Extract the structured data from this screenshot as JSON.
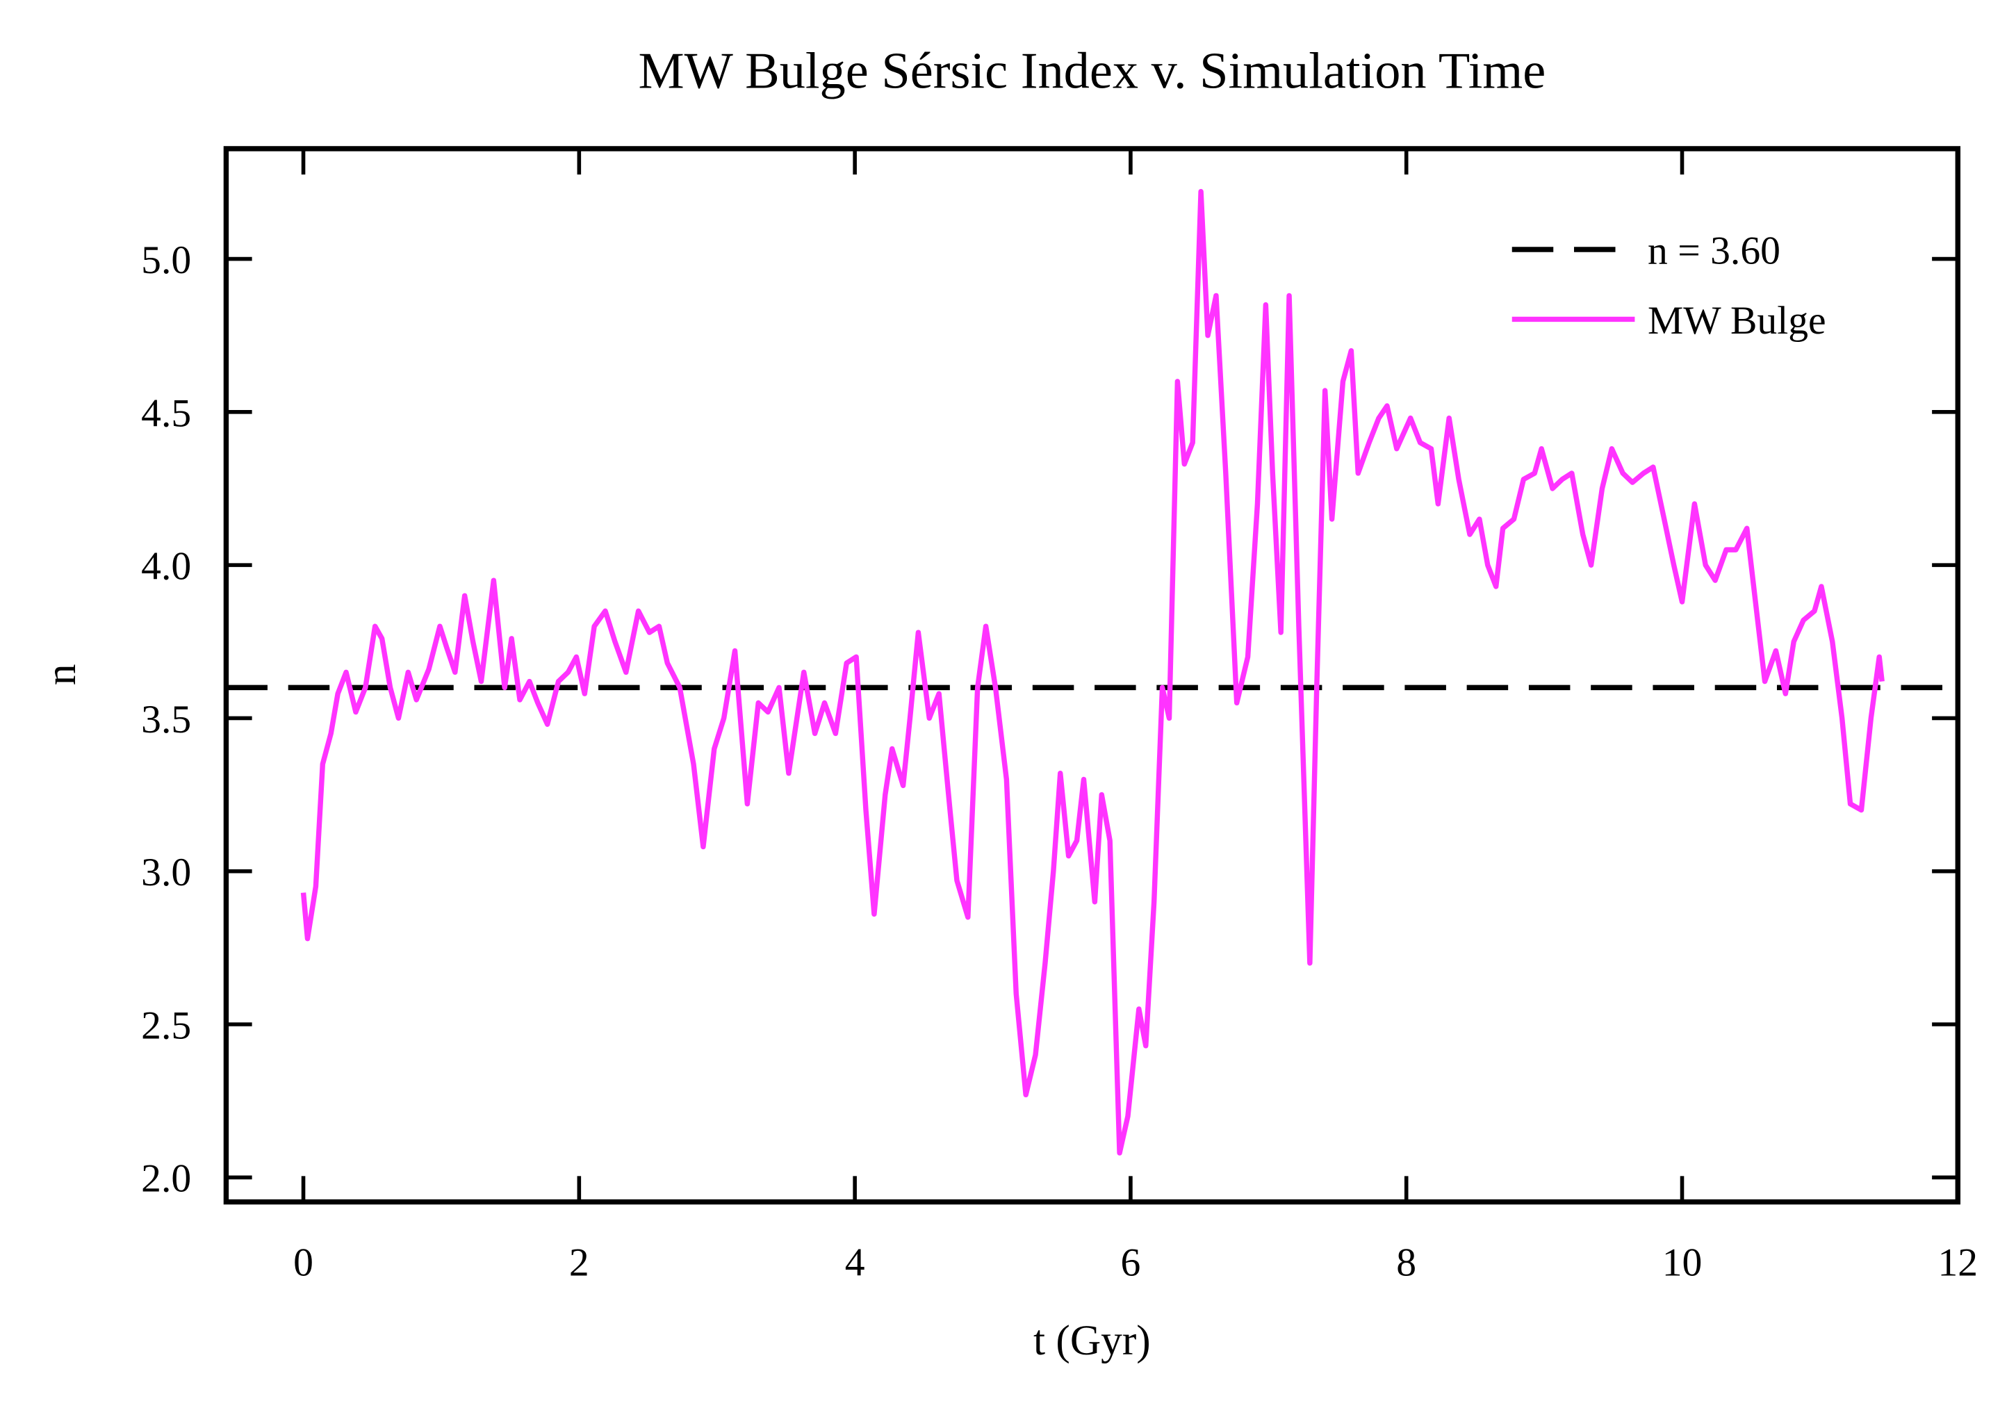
{
  "chart_data": {
    "type": "line",
    "title": "MW Bulge Sérsic Index v. Simulation Time",
    "xlabel": "t (Gyr)",
    "ylabel": "n",
    "xlim": [
      -0.56,
      12
    ],
    "ylim": [
      1.92,
      5.36
    ],
    "xticks": [
      0,
      2,
      4,
      6,
      8,
      10,
      12
    ],
    "yticks": [
      {
        "value": 2,
        "label": "2.0"
      },
      {
        "value": 2.5,
        "label": "2.5"
      },
      {
        "value": 3,
        "label": "3.0"
      },
      {
        "value": 3.5,
        "label": "3.5"
      },
      {
        "value": 4,
        "label": "4.0"
      },
      {
        "value": 4.5,
        "label": "4.5"
      },
      {
        "value": 5,
        "label": "5.0"
      }
    ],
    "legend": "upper right",
    "hlines": [
      {
        "name": "n = 3.60",
        "value": 3.6,
        "color": "#000000",
        "style": "dashed"
      }
    ],
    "series": [
      {
        "name": "MW Bulge",
        "color": "#ff33ff",
        "x": [
          0,
          0.03,
          0.09,
          0.14,
          0.2,
          0.25,
          0.31,
          0.38,
          0.45,
          0.52,
          0.57,
          0.63,
          0.69,
          0.76,
          0.82,
          0.91,
          0.99,
          1.04,
          1.1,
          1.17,
          1.23,
          1.29,
          1.38,
          1.46,
          1.51,
          1.57,
          1.64,
          1.7,
          1.77,
          1.85,
          1.92,
          1.98,
          2.04,
          2.11,
          2.19,
          2.26,
          2.34,
          2.43,
          2.51,
          2.58,
          2.64,
          2.73,
          2.83,
          2.9,
          2.98,
          3.05,
          3.13,
          3.22,
          3.3,
          3.37,
          3.45,
          3.52,
          3.63,
          3.71,
          3.78,
          3.86,
          3.94,
          4.01,
          4.08,
          4.14,
          4.22,
          4.27,
          4.35,
          4.4,
          4.46,
          4.54,
          4.61,
          4.69,
          4.74,
          4.82,
          4.89,
          4.95,
          5.02,
          5.1,
          5.17,
          5.24,
          5.31,
          5.38,
          5.44,
          5.49,
          5.55,
          5.61,
          5.66,
          5.74,
          5.79,
          5.85,
          5.92,
          5.98,
          6.06,
          6.11,
          6.17,
          6.23,
          6.28,
          6.34,
          6.39,
          6.45,
          6.51,
          6.56,
          6.62,
          6.69,
          6.77,
          6.85,
          6.92,
          6.98,
          7.03,
          7.09,
          7.15,
          7.22,
          7.3,
          7.35,
          7.41,
          7.46,
          7.54,
          7.6,
          7.65,
          7.73,
          7.8,
          7.86,
          7.93,
          8.03,
          8.1,
          8.18,
          8.23,
          8.31,
          8.38,
          8.46,
          8.53,
          8.59,
          8.65,
          8.7,
          8.78,
          8.85,
          8.93,
          8.98,
          9.06,
          9.13,
          9.2,
          9.28,
          9.34,
          9.42,
          9.49,
          9.57,
          9.64,
          9.72,
          9.79,
          9.87,
          9.94,
          10.0,
          10.09,
          10.17,
          10.24,
          10.32,
          10.39,
          10.47,
          10.54,
          10.6,
          10.68,
          10.75,
          10.81,
          10.88,
          10.96,
          11.01,
          11.09,
          11.16,
          11.22,
          11.3,
          11.37,
          11.43,
          11.45
        ],
        "values": [
          2.93,
          2.78,
          2.95,
          3.35,
          3.45,
          3.58,
          3.65,
          3.52,
          3.6,
          3.8,
          3.76,
          3.6,
          3.5,
          3.65,
          3.56,
          3.66,
          3.8,
          3.73,
          3.65,
          3.9,
          3.75,
          3.62,
          3.95,
          3.6,
          3.76,
          3.56,
          3.62,
          3.55,
          3.48,
          3.62,
          3.65,
          3.7,
          3.58,
          3.8,
          3.85,
          3.75,
          3.65,
          3.85,
          3.78,
          3.8,
          3.68,
          3.6,
          3.35,
          3.08,
          3.4,
          3.5,
          3.72,
          3.22,
          3.55,
          3.52,
          3.6,
          3.32,
          3.65,
          3.45,
          3.55,
          3.45,
          3.68,
          3.7,
          3.2,
          2.86,
          3.25,
          3.4,
          3.28,
          3.5,
          3.78,
          3.5,
          3.58,
          3.2,
          2.97,
          2.85,
          3.6,
          3.8,
          3.6,
          3.3,
          2.6,
          2.27,
          2.4,
          2.7,
          3.0,
          3.32,
          3.05,
          3.1,
          3.3,
          2.9,
          3.25,
          3.1,
          2.08,
          2.2,
          2.55,
          2.43,
          2.9,
          3.6,
          3.5,
          4.6,
          4.33,
          4.4,
          5.22,
          4.75,
          4.88,
          4.3,
          3.55,
          3.7,
          4.2,
          4.85,
          4.3,
          3.78,
          4.88,
          3.8,
          2.7,
          3.6,
          4.57,
          4.15,
          4.6,
          4.7,
          4.3,
          4.4,
          4.48,
          4.52,
          4.38,
          4.48,
          4.4,
          4.38,
          4.2,
          4.48,
          4.28,
          4.1,
          4.15,
          4.0,
          3.93,
          4.12,
          4.15,
          4.28,
          4.3,
          4.38,
          4.25,
          4.28,
          4.3,
          4.1,
          4.0,
          4.25,
          4.38,
          4.3,
          4.27,
          4.3,
          4.32,
          4.15,
          4.0,
          3.88,
          4.2,
          4.0,
          3.95,
          4.05,
          4.05,
          4.12,
          3.85,
          3.62,
          3.72,
          3.58,
          3.75,
          3.82,
          3.85,
          3.93,
          3.75,
          3.5,
          3.22,
          3.2,
          3.5,
          3.7,
          3.62
        ]
      }
    ]
  }
}
